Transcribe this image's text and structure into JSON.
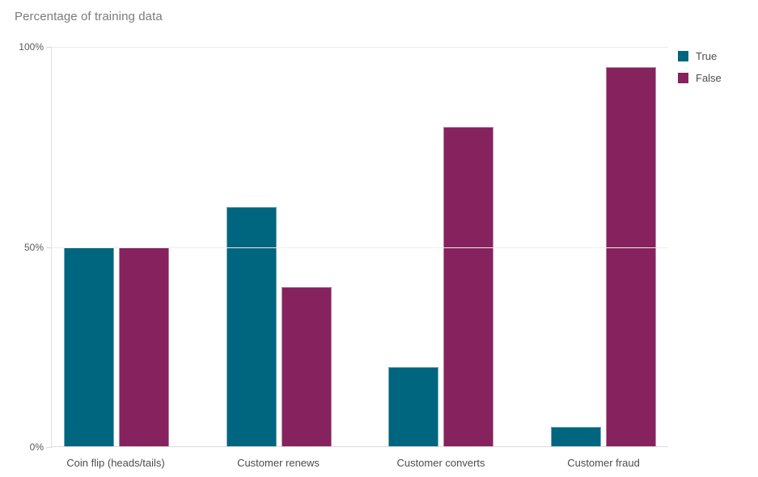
{
  "chart_data": {
    "type": "bar",
    "title": "Percentage of training data",
    "categories": [
      "Coin flip (heads/tails)",
      "Customer renews",
      "Customer converts",
      "Customer fraud"
    ],
    "series": [
      {
        "name": "True",
        "color": "#00657e",
        "values": [
          50,
          60,
          20,
          5
        ]
      },
      {
        "name": "False",
        "color": "#86225e",
        "values": [
          50,
          40,
          80,
          95
        ]
      }
    ],
    "xlabel": "",
    "ylabel": "",
    "ylim": [
      0,
      100
    ],
    "yticks": [
      {
        "label": "0%",
        "value": 0
      },
      {
        "label": "50%",
        "value": 50
      },
      {
        "label": "100%",
        "value": 100
      }
    ],
    "grid": true,
    "legend_position": "top-right"
  },
  "colors": {
    "title_text": "#7b7b7b",
    "axis_text": "#595959",
    "category_text": "#4d4d4d",
    "gridline": "#ececec",
    "axis_line": "#e0e0e0",
    "true_series": "#00657e",
    "false_series": "#86225e"
  }
}
